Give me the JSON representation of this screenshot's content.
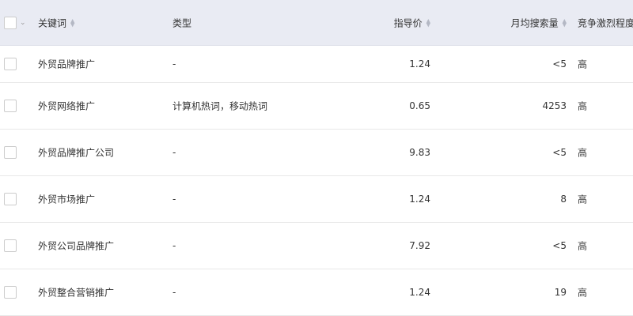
{
  "header": {
    "keyword": "关键词",
    "type": "类型",
    "price": "指导价",
    "volume": "月均搜索量",
    "competition": "竞争激烈程度"
  },
  "rows": [
    {
      "keyword": "外贸品牌推广",
      "type": "-",
      "price": "1.24",
      "volume": "<5",
      "competition": "高"
    },
    {
      "keyword": "外贸网络推广",
      "type": "计算机热词，移动热词",
      "price": "0.65",
      "volume": "4253",
      "competition": "高"
    },
    {
      "keyword": "外贸品牌推广公司",
      "type": "-",
      "price": "9.83",
      "volume": "<5",
      "competition": "高"
    },
    {
      "keyword": "外贸市场推广",
      "type": "-",
      "price": "1.24",
      "volume": "8",
      "competition": "高"
    },
    {
      "keyword": "外贸公司品牌推广",
      "type": "-",
      "price": "7.92",
      "volume": "<5",
      "competition": "高"
    },
    {
      "keyword": "外贸整合营销推广",
      "type": "-",
      "price": "1.24",
      "volume": "19",
      "competition": "高"
    }
  ]
}
